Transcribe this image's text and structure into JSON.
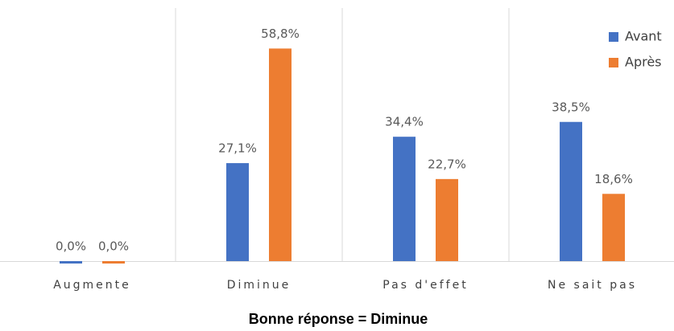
{
  "chart_data": {
    "type": "bar",
    "title": "Bonne réponse = Diminue",
    "categories": [
      "Augmente",
      "Diminue",
      "Pas d'effet",
      "Ne sait pas"
    ],
    "series": [
      {
        "name": "Avant",
        "color": "#4472c4",
        "values": [
          0.0,
          27.1,
          34.4,
          38.5
        ],
        "value_labels": [
          "0,0%",
          "27,1%",
          "34,4%",
          "38,5%"
        ]
      },
      {
        "name": "Après",
        "color": "#ed7d31",
        "values": [
          0.0,
          58.8,
          22.7,
          18.6
        ],
        "value_labels": [
          "0,0%",
          "58,8%",
          "22,7%",
          "18,6%"
        ]
      }
    ],
    "ylim": [
      0,
      70
    ],
    "legend": "upper right"
  }
}
